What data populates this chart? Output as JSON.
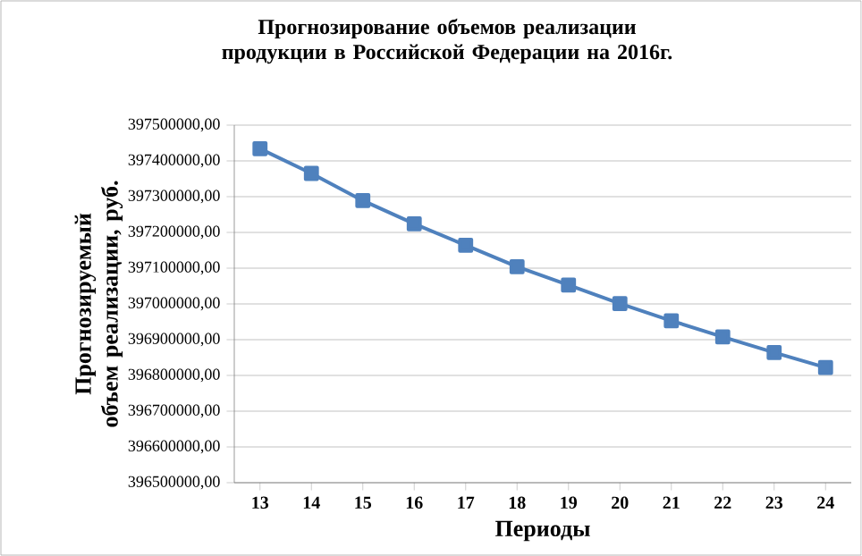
{
  "chart_data": {
    "type": "line",
    "title": "Прогнозирование объемов реализации продукции в Российской Федерации на 2016г.",
    "xlabel": "Периоды",
    "ylabel": "Прогнозируемый объем реализации, руб.",
    "categories": [
      "13",
      "14",
      "15",
      "16",
      "17",
      "18",
      "19",
      "20",
      "21",
      "22",
      "23",
      "24"
    ],
    "series": [
      {
        "color": "#4f81bd",
        "values": [
          397434000,
          397365000,
          397289000,
          397224000,
          397164000,
          397104000,
          397053000,
          397001000,
          396953000,
          396908000,
          396864000,
          396822000
        ]
      }
    ],
    "ylim": [
      396500000,
      397500000
    ],
    "yticks": [
      {
        "value": 396500000,
        "label": "396500000,00"
      },
      {
        "value": 396600000,
        "label": "396600000,00"
      },
      {
        "value": 396700000,
        "label": "396700000,00"
      },
      {
        "value": 396800000,
        "label": "396800000,00"
      },
      {
        "value": 396900000,
        "label": "396900000,00"
      },
      {
        "value": 397000000,
        "label": "397000000,00"
      },
      {
        "value": 397100000,
        "label": "397100000,00"
      },
      {
        "value": 397200000,
        "label": "397200000,00"
      },
      {
        "value": 397300000,
        "label": "397300000,00"
      },
      {
        "value": 397400000,
        "label": "397400000,00"
      },
      {
        "value": 397500000,
        "label": "397500000,00"
      }
    ],
    "grid": "y",
    "marker": "square",
    "line_style": "solid"
  }
}
